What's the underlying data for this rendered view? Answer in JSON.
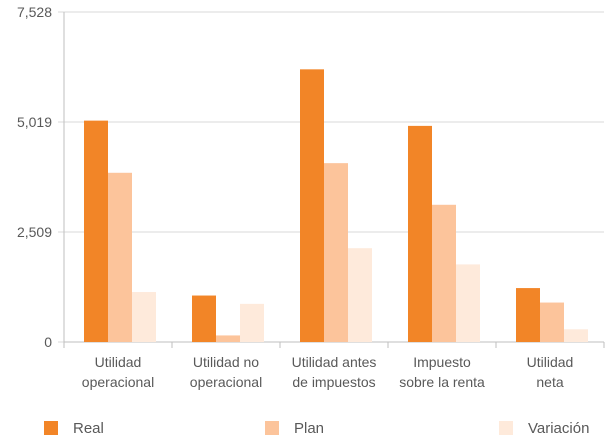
{
  "chart_data": {
    "type": "bar",
    "title": "",
    "xlabel": "",
    "ylabel": "",
    "ylim": [
      0,
      7528
    ],
    "yticks": [
      "0",
      "2,509",
      "5,019",
      "7,528"
    ],
    "ytick_values": [
      0,
      2509,
      5019,
      7528
    ],
    "categories": [
      [
        "Utilidad",
        "operacional"
      ],
      [
        "Utilidad no",
        "operacional"
      ],
      [
        "Utilidad antes",
        "de impuestos"
      ],
      [
        "Impuesto",
        "sobre la renta"
      ],
      [
        "Utilidad",
        "neta"
      ]
    ],
    "series": [
      {
        "name": "Real",
        "color": "#F28527",
        "values": [
          5050,
          1060,
          6220,
          4930,
          1230
        ]
      },
      {
        "name": "Plan",
        "color": "#FCC49B",
        "values": [
          3860,
          150,
          4080,
          3130,
          900
        ]
      },
      {
        "name": "Variación",
        "color": "#FEEADB",
        "values": [
          1140,
          870,
          2140,
          1770,
          290
        ]
      }
    ],
    "grid": true,
    "legend_position": "bottom"
  }
}
